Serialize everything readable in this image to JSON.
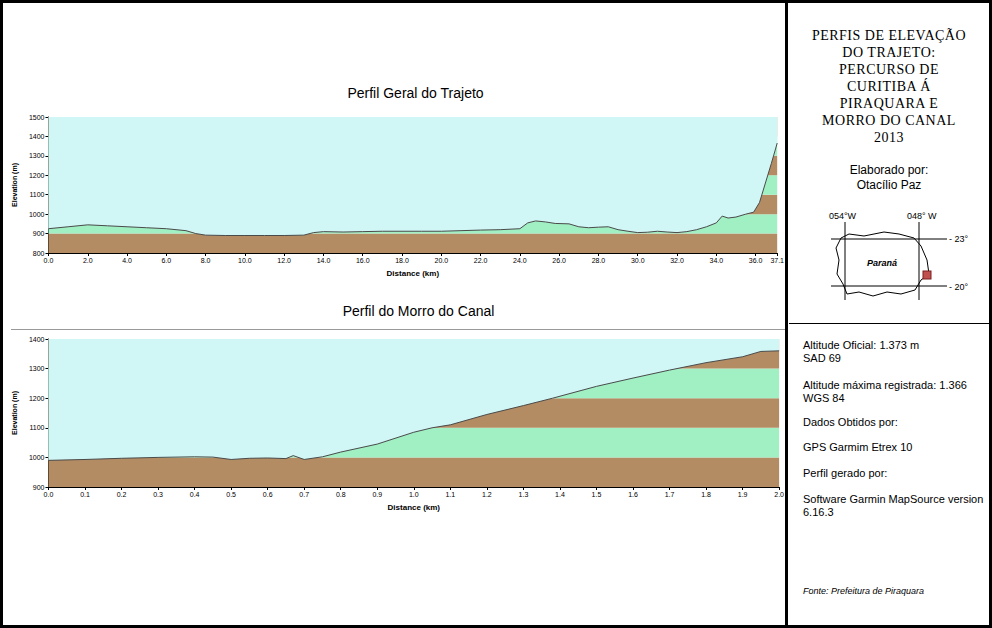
{
  "chart_data": [
    {
      "type": "area",
      "title": "Perfil Geral do Trajeto",
      "x_label": "Distance (km)",
      "y_label": "Elevation (m)",
      "x": [
        0,
        1,
        2,
        3,
        4,
        5,
        6,
        7,
        7.5,
        8,
        9,
        10,
        11,
        12,
        13,
        13.5,
        14,
        15,
        16,
        17,
        18,
        19,
        20,
        21,
        22,
        23,
        24,
        24.4,
        24.8,
        25.3,
        25.8,
        26.5,
        27,
        27.5,
        28,
        28.5,
        29,
        29.5,
        30,
        30.5,
        31,
        31.5,
        32,
        32.5,
        33,
        33.5,
        34,
        34.3,
        34.6,
        35,
        35.5,
        35.9,
        36.2,
        36.5,
        36.8,
        37.0,
        37.1
      ],
      "values": [
        925,
        935,
        945,
        940,
        935,
        930,
        925,
        915,
        900,
        892,
        890,
        890,
        890,
        890,
        892,
        905,
        910,
        908,
        910,
        912,
        912,
        912,
        912,
        915,
        918,
        920,
        925,
        955,
        965,
        960,
        952,
        950,
        935,
        930,
        933,
        935,
        920,
        912,
        905,
        907,
        912,
        908,
        905,
        910,
        920,
        935,
        955,
        990,
        980,
        985,
        1000,
        1010,
        1060,
        1160,
        1260,
        1330,
        1366
      ],
      "color": "#4a4a4a",
      "xlim": [
        0,
        37.1
      ],
      "xticks": [
        {
          "value": 0,
          "label": "0.0"
        },
        {
          "value": 2,
          "label": "2.0"
        },
        {
          "value": 4,
          "label": "4.0"
        },
        {
          "value": 6,
          "label": "6.0"
        },
        {
          "value": 8,
          "label": "8.0"
        },
        {
          "value": 10,
          "label": "10.0"
        },
        {
          "value": 12,
          "label": "12.0"
        },
        {
          "value": 14,
          "label": "14.0"
        },
        {
          "value": 16,
          "label": "16.0"
        },
        {
          "value": 18,
          "label": "18.0"
        },
        {
          "value": 20,
          "label": "20.0"
        },
        {
          "value": 22,
          "label": "22.0"
        },
        {
          "value": 24,
          "label": "24.0"
        },
        {
          "value": 26,
          "label": "26.0"
        },
        {
          "value": 28,
          "label": "28.0"
        },
        {
          "value": 30,
          "label": "30.0"
        },
        {
          "value": 32,
          "label": "32.0"
        },
        {
          "value": 34,
          "label": "34.0"
        },
        {
          "value": 36,
          "label": "36.0"
        },
        37.1
      ],
      "ylim": [
        800,
        1500
      ],
      "yticks": [
        800,
        900,
        1000,
        1100,
        1200,
        1300,
        1400,
        1500
      ],
      "grid": false
    },
    {
      "type": "area",
      "title": "Perfil do Morro do Canal",
      "x_label": "Distance (km)",
      "y_label": "Elevation (m)",
      "x": [
        0,
        0.1,
        0.2,
        0.3,
        0.4,
        0.45,
        0.5,
        0.55,
        0.6,
        0.65,
        0.67,
        0.7,
        0.75,
        0.8,
        0.9,
        1.0,
        1.05,
        1.1,
        1.2,
        1.3,
        1.38,
        1.5,
        1.6,
        1.7,
        1.8,
        1.9,
        1.95,
        2.0
      ],
      "values": [
        990,
        993,
        997,
        1000,
        1002,
        1001,
        993,
        997,
        998,
        996,
        1006,
        993,
        1002,
        1018,
        1045,
        1085,
        1100,
        1110,
        1145,
        1175,
        1200,
        1240,
        1268,
        1295,
        1320,
        1340,
        1358,
        1360
      ],
      "color": "#4a4a4a",
      "xlim": [
        0,
        2.0
      ],
      "xticks": [
        {
          "value": 0,
          "label": "0.0"
        },
        0.1,
        0.2,
        0.3,
        0.4,
        0.5,
        0.6,
        0.7,
        0.8,
        0.9,
        {
          "value": 1,
          "label": "1.0"
        },
        1.1,
        1.2,
        1.3,
        1.4,
        1.5,
        1.6,
        1.7,
        1.8,
        1.9,
        {
          "value": 2,
          "label": "2.0"
        }
      ],
      "ylim": [
        900,
        1400
      ],
      "yticks": [
        900,
        1000,
        1100,
        1200,
        1300,
        1400
      ],
      "grid": false
    }
  ],
  "panel": {
    "title_lines": [
      "PERFIS DE ELEVAÇÃO",
      "DO TRAJETO:",
      "PERCURSO DE",
      "CURITIBA Á",
      "PIRAQUARA E",
      "MORRO DO CANAL",
      "2013"
    ],
    "author_label": "Elaborado por:",
    "author": "Otacílio Paz",
    "map": {
      "state": "Paraná",
      "lon_left": "054°W",
      "lon_right": "048° W",
      "lat_top": "- 23°",
      "lat_bottom": "- 20°"
    },
    "notes": [
      "Altitude Oficial: 1.373 m",
      "SAD 69",
      "Altitude máxima registrada: 1.366",
      "WGS 84",
      "Dados Obtidos por:",
      "GPS Garmim Etrex 10",
      "Perfil gerado por:",
      "Software Garmin MapSource version 6.16.3"
    ],
    "source": "Fonte: Prefeitura de Piraquara"
  }
}
